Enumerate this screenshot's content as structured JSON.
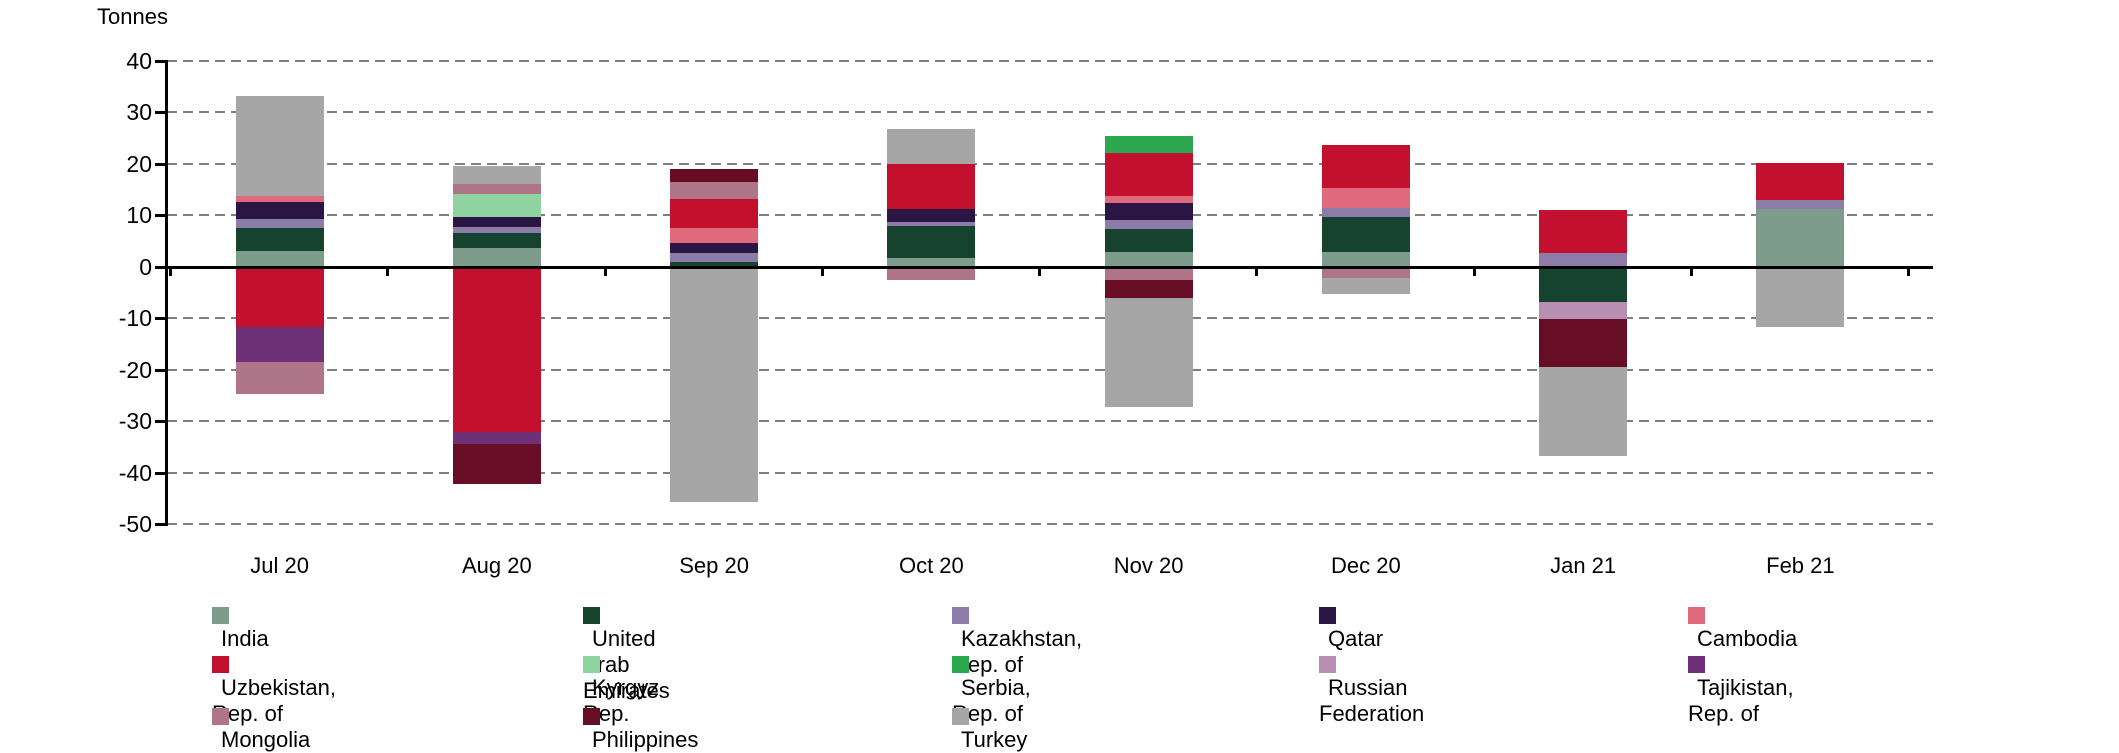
{
  "chart": {
    "unit_label": "Tonnes"
  },
  "chart_data": {
    "type": "bar",
    "stacked": true,
    "title": "",
    "ylabel": "Tonnes",
    "xlabel": "",
    "ylim": [
      -50,
      40
    ],
    "yticks": [
      40,
      30,
      20,
      10,
      0,
      -10,
      -20,
      -30,
      -40,
      -50
    ],
    "grid": "dashed-horizontal",
    "legend_position": "bottom",
    "categories": [
      "Jul 20",
      "Aug 20",
      "Sep 20",
      "Oct 20",
      "Nov 20",
      "Dec 20",
      "Jan 21",
      "Feb 21"
    ],
    "series": [
      {
        "name": "India",
        "color": "#7D9C8C",
        "values": [
          3.0,
          3.7,
          0,
          1.8,
          2.9,
          2.9,
          0,
          11.2
        ]
      },
      {
        "name": "United Arab Emirates",
        "color": "#15432F",
        "values": [
          4.6,
          2.8,
          1.0,
          6.2,
          4.5,
          6.7,
          -6.9,
          0
        ]
      },
      {
        "name": "Kazakhstan, Rep. of",
        "color": "#8C7DA8",
        "values": [
          1.6,
          1.3,
          1.7,
          0.8,
          1.7,
          1.9,
          2.7,
          1.7
        ]
      },
      {
        "name": "Qatar",
        "color": "#2B1544",
        "values": [
          3.3,
          1.8,
          2.0,
          2.4,
          3.3,
          0,
          0,
          0
        ]
      },
      {
        "name": "Cambodia",
        "color": "#DF6A7D",
        "values": [
          1.2,
          0,
          2.9,
          0,
          1.4,
          3.9,
          0,
          0
        ]
      },
      {
        "name": "Uzbekistan, Rep. of",
        "color": "#C3102F",
        "values": [
          -11.8,
          -32.2,
          5.5,
          8.8,
          8.3,
          8.2,
          8.3,
          7.3
        ]
      },
      {
        "name": "Kyrgyz Rep.",
        "color": "#8FD3A0",
        "values": [
          0,
          4.6,
          0,
          0,
          0,
          0,
          0,
          0
        ]
      },
      {
        "name": "Serbia, Rep. of",
        "color": "#2BA84F",
        "values": [
          0,
          0,
          0,
          0,
          3.3,
          0,
          0,
          0
        ]
      },
      {
        "name": "Russian Federation",
        "color": "#B78FB3",
        "values": [
          0,
          0,
          0,
          0,
          0,
          0,
          -3.3,
          0
        ]
      },
      {
        "name": "Tajikistan, Rep. of",
        "color": "#6E3178",
        "values": [
          -6.8,
          -2.3,
          0,
          0,
          0,
          0,
          0,
          0
        ]
      },
      {
        "name": "Mongolia",
        "color": "#AE7488",
        "values": [
          -6.1,
          1.8,
          3.3,
          -2.5,
          -2.5,
          -2.2,
          0,
          0
        ]
      },
      {
        "name": "Philippines",
        "color": "#670D26",
        "values": [
          0,
          -7.7,
          2.7,
          0,
          -3.6,
          0,
          -9.2,
          0
        ]
      },
      {
        "name": "Turkey",
        "color": "#A6A6A6",
        "values": [
          19.5,
          3.6,
          -45.7,
          6.7,
          -21.1,
          -3.1,
          -17.3,
          -11.8
        ]
      }
    ]
  }
}
